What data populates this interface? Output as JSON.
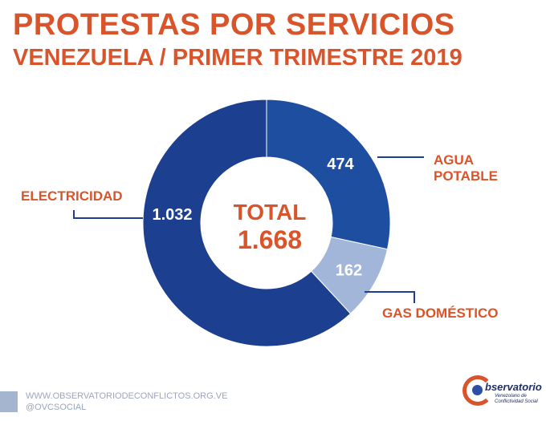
{
  "header": {
    "title": "PROTESTAS POR SERVICIOS",
    "subtitle": "VENEZUELA / PRIMER TRIMESTRE 2019"
  },
  "chart_data": {
    "type": "pie",
    "donut": true,
    "slices": [
      {
        "label": "AGUA POTABLE",
        "label_lines": [
          "AGUA",
          "POTABLE"
        ],
        "value": 474,
        "value_text": "474",
        "color": "#1e4ea0"
      },
      {
        "label": "GAS DOMÉSTICO",
        "label_lines": [
          "GAS DOMÉSTICO"
        ],
        "value": 162,
        "value_text": "162",
        "color": "#a2b6d9"
      },
      {
        "label": "ELECTRICIDAD",
        "label_lines": [
          "ELECTRICIDAD"
        ],
        "value": 1032,
        "value_text": "1.032",
        "color": "#1c3f8f"
      }
    ],
    "center_label": "TOTAL",
    "center_value": "1.668",
    "accent_color": "#d9542b"
  },
  "footer": {
    "website": "WWW.OBSERVATORIODECONFLICTOS.ORG.VE",
    "social": "@OVCSOCIAL"
  },
  "logo": {
    "name": "bservatorio",
    "subtitle_lines": [
      "Venezolano de",
      "Conflictividad Social"
    ]
  }
}
